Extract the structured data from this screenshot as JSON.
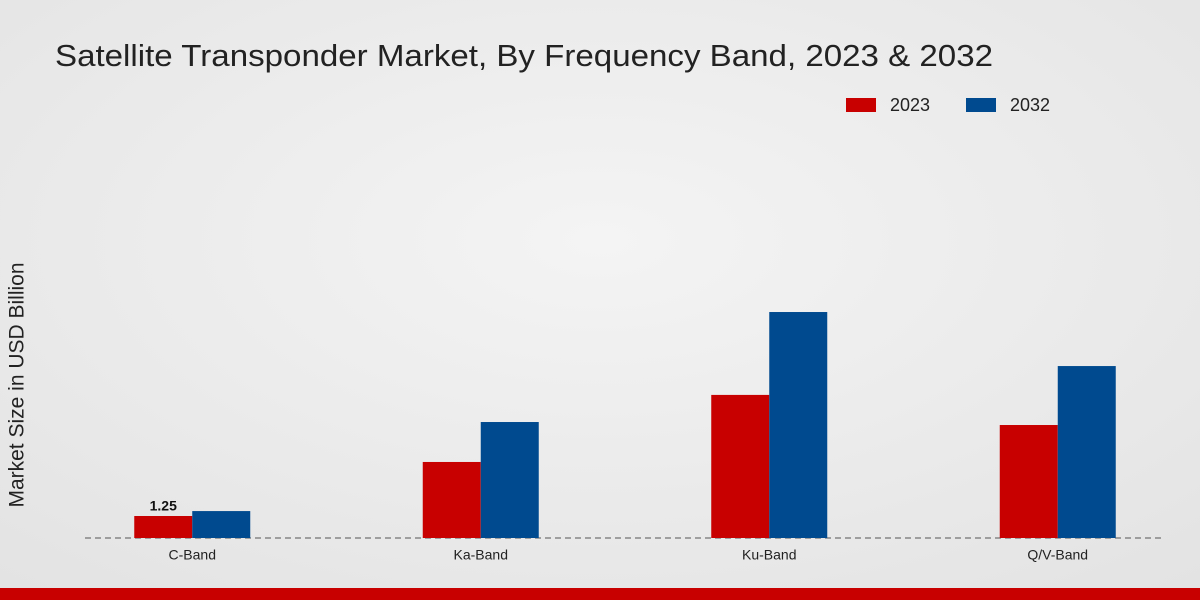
{
  "chart_data": {
    "type": "bar",
    "title": "Satellite Transponder Market, By Frequency Band, 2023 & 2032",
    "y_label": "Market Size in USD Billion",
    "categories": [
      "C-Band",
      "Ka-Band",
      "Ku-Band",
      "Q/V-Band"
    ],
    "series": [
      {
        "name": "2023",
        "color": "#c80000",
        "values": [
          1.25,
          4.32,
          8.13,
          6.42
        ]
      },
      {
        "name": "2032",
        "color": "#004a8f",
        "values": [
          1.53,
          6.59,
          12.84,
          9.77
        ]
      }
    ]
  }
}
